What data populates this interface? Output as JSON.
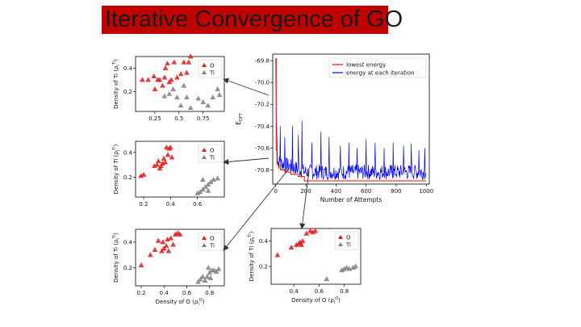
{
  "slide": {
    "title": "Iterative Convergence of GO"
  },
  "colors": {
    "title_bg": "#c00000",
    "O": "#e31a1c",
    "Ti": "#7f7f7f",
    "lowest_energy": "#ff0000",
    "energy_each": "#0000ff"
  },
  "chart_data": [
    {
      "type": "line",
      "id": "energy",
      "ylabel": "E_DFT",
      "xlabel": "Number of Attempts",
      "xlim": [
        -20,
        1020
      ],
      "ylim": [
        -70.93,
        -69.74
      ],
      "xticks": [
        0,
        200,
        400,
        600,
        800,
        1000
      ],
      "yticks": [
        -69.8,
        -70.0,
        -70.2,
        -70.4,
        -70.6,
        -70.8
      ],
      "legend_position": "top-right",
      "series": [
        {
          "name": "lowest energy",
          "color": "#ff0000",
          "points": [
            [
              0,
              -69.78
            ],
            [
              3,
              -70.62
            ],
            [
              8,
              -70.74
            ],
            [
              18,
              -70.76
            ],
            [
              30,
              -70.8
            ],
            [
              60,
              -70.82
            ],
            [
              100,
              -70.84
            ],
            [
              150,
              -70.86
            ],
            [
              190,
              -70.9
            ],
            [
              1000,
              -70.9
            ]
          ]
        },
        {
          "name": "energy at each iteration",
          "color": "#0000ff",
          "values_note": "noisy trace",
          "start": -69.78,
          "baseline": -70.72,
          "baseline_end": -70.82,
          "spikes": [
            [
              5,
              -70.05
            ],
            [
              30,
              -70.4
            ],
            [
              60,
              -70.5
            ],
            [
              110,
              -70.4
            ],
            [
              150,
              -70.48
            ],
            [
              175,
              -70.35
            ],
            [
              240,
              -70.55
            ],
            [
              300,
              -70.45
            ],
            [
              355,
              -70.5
            ],
            [
              430,
              -70.58
            ],
            [
              485,
              -70.55
            ],
            [
              540,
              -70.6
            ],
            [
              600,
              -70.52
            ],
            [
              660,
              -70.55
            ],
            [
              720,
              -70.6
            ],
            [
              780,
              -70.55
            ],
            [
              850,
              -70.58
            ],
            [
              900,
              -70.56
            ],
            [
              950,
              -70.62
            ],
            [
              990,
              -70.6
            ]
          ]
        }
      ]
    },
    {
      "type": "scatter",
      "id": "scatter-top",
      "ylabel": "Density of Ti (ρ_l^Ti)",
      "xlabel": "",
      "xlim": [
        0.05,
        0.97
      ],
      "ylim": [
        0.03,
        0.5
      ],
      "xticks": [
        0.25,
        0.5,
        0.75
      ],
      "yticks": [
        0.2,
        0.4
      ],
      "legend_position": "top-right",
      "series": [
        {
          "name": "O",
          "color": "#e31a1c",
          "points": [
            [
              0.12,
              0.3
            ],
            [
              0.18,
              0.3
            ],
            [
              0.24,
              0.33
            ],
            [
              0.25,
              0.22
            ],
            [
              0.28,
              0.3
            ],
            [
              0.3,
              0.3
            ],
            [
              0.35,
              0.32
            ],
            [
              0.36,
              0.4
            ],
            [
              0.4,
              0.28
            ],
            [
              0.42,
              0.3
            ],
            [
              0.45,
              0.45
            ],
            [
              0.48,
              0.32
            ],
            [
              0.52,
              0.35
            ],
            [
              0.55,
              0.45
            ],
            [
              0.58,
              0.36
            ],
            [
              0.6,
              0.45
            ],
            [
              0.62,
              0.5
            ],
            [
              0.33,
              0.25
            ],
            [
              0.38,
              0.44
            ]
          ]
        },
        {
          "name": "Ti",
          "color": "#7f7f7f",
          "points": [
            [
              0.4,
              0.18
            ],
            [
              0.48,
              0.15
            ],
            [
              0.52,
              0.08
            ],
            [
              0.55,
              0.25
            ],
            [
              0.58,
              0.15
            ],
            [
              0.62,
              0.06
            ],
            [
              0.7,
              0.14
            ],
            [
              0.75,
              0.11
            ],
            [
              0.8,
              0.08
            ],
            [
              0.85,
              0.15
            ],
            [
              0.9,
              0.22
            ],
            [
              0.92,
              0.17
            ],
            [
              0.35,
              0.16
            ],
            [
              0.44,
              0.22
            ]
          ]
        }
      ]
    },
    {
      "type": "scatter",
      "id": "scatter-mid",
      "ylabel": "Density of Ti (ρ_l^Ti)",
      "xlabel": "",
      "xlim": [
        0.14,
        0.8
      ],
      "ylim": [
        0.04,
        0.49
      ],
      "xticks": [
        0.2,
        0.4,
        0.6
      ],
      "yticks": [
        0.2,
        0.4
      ],
      "legend_position": "top-right",
      "series": [
        {
          "name": "O",
          "color": "#e31a1c",
          "points": [
            [
              0.18,
              0.21
            ],
            [
              0.2,
              0.22
            ],
            [
              0.28,
              0.29
            ],
            [
              0.3,
              0.3
            ],
            [
              0.31,
              0.33
            ],
            [
              0.33,
              0.29
            ],
            [
              0.34,
              0.31
            ],
            [
              0.35,
              0.35
            ],
            [
              0.36,
              0.32
            ],
            [
              0.37,
              0.44
            ],
            [
              0.39,
              0.43
            ],
            [
              0.4,
              0.44
            ],
            [
              0.41,
              0.36
            ],
            [
              0.38,
              0.38
            ],
            [
              0.32,
              0.27
            ]
          ]
        },
        {
          "name": "Ti",
          "color": "#7f7f7f",
          "points": [
            [
              0.6,
              0.07
            ],
            [
              0.62,
              0.08
            ],
            [
              0.64,
              0.1
            ],
            [
              0.66,
              0.12
            ],
            [
              0.68,
              0.14
            ],
            [
              0.7,
              0.16
            ],
            [
              0.72,
              0.18
            ],
            [
              0.75,
              0.19
            ],
            [
              0.64,
              0.18
            ],
            [
              0.68,
              0.09
            ]
          ]
        }
      ]
    },
    {
      "type": "scatter",
      "id": "scatter-bottom-left",
      "ylabel": "Density of Ti (ρ_l^Ti)",
      "xlabel": "Density of O (ρ_l^O)",
      "xlim": [
        0.15,
        0.93
      ],
      "ylim": [
        0.06,
        0.5
      ],
      "xticks": [
        0.2,
        0.4,
        0.6,
        0.8
      ],
      "yticks": [
        0.2,
        0.4
      ],
      "legend_position": "top-right",
      "series": [
        {
          "name": "O",
          "color": "#e31a1c",
          "points": [
            [
              0.2,
              0.22
            ],
            [
              0.28,
              0.3
            ],
            [
              0.32,
              0.34
            ],
            [
              0.35,
              0.41
            ],
            [
              0.38,
              0.33
            ],
            [
              0.4,
              0.35
            ],
            [
              0.42,
              0.37
            ],
            [
              0.43,
              0.42
            ],
            [
              0.44,
              0.33
            ],
            [
              0.46,
              0.43
            ],
            [
              0.48,
              0.38
            ],
            [
              0.5,
              0.46
            ],
            [
              0.52,
              0.47
            ],
            [
              0.54,
              0.46
            ],
            [
              0.39,
              0.4
            ]
          ]
        },
        {
          "name": "Ti",
          "color": "#7f7f7f",
          "points": [
            [
              0.7,
              0.09
            ],
            [
              0.72,
              0.11
            ],
            [
              0.74,
              0.13
            ],
            [
              0.76,
              0.1
            ],
            [
              0.78,
              0.13
            ],
            [
              0.8,
              0.16
            ],
            [
              0.82,
              0.18
            ],
            [
              0.84,
              0.18
            ],
            [
              0.86,
              0.17
            ],
            [
              0.88,
              0.19
            ],
            [
              0.79,
              0.2
            ],
            [
              0.81,
              0.12
            ]
          ]
        }
      ]
    },
    {
      "type": "scatter",
      "id": "scatter-bottom-right",
      "ylabel": "Density of Ti (ρ_l^Ti)",
      "xlabel": "Density of O (ρ_l^O)",
      "xlim": [
        0.22,
        0.93
      ],
      "ylim": [
        0.06,
        0.5
      ],
      "xticks": [
        0.4,
        0.6,
        0.8
      ],
      "yticks": [
        0.2,
        0.4
      ],
      "legend_position": "top-right",
      "series": [
        {
          "name": "O",
          "color": "#e31a1c",
          "points": [
            [
              0.27,
              0.29
            ],
            [
              0.38,
              0.35
            ],
            [
              0.42,
              0.37
            ],
            [
              0.44,
              0.38
            ],
            [
              0.45,
              0.39
            ],
            [
              0.46,
              0.37
            ],
            [
              0.5,
              0.46
            ],
            [
              0.53,
              0.48
            ],
            [
              0.55,
              0.47
            ],
            [
              0.57,
              0.48
            ],
            [
              0.47,
              0.4
            ]
          ]
        },
        {
          "name": "Ti",
          "color": "#7f7f7f",
          "points": [
            [
              0.66,
              0.1
            ],
            [
              0.78,
              0.17
            ],
            [
              0.8,
              0.18
            ],
            [
              0.82,
              0.19
            ],
            [
              0.87,
              0.19
            ],
            [
              0.89,
              0.2
            ],
            [
              0.84,
              0.18
            ]
          ]
        }
      ]
    }
  ]
}
